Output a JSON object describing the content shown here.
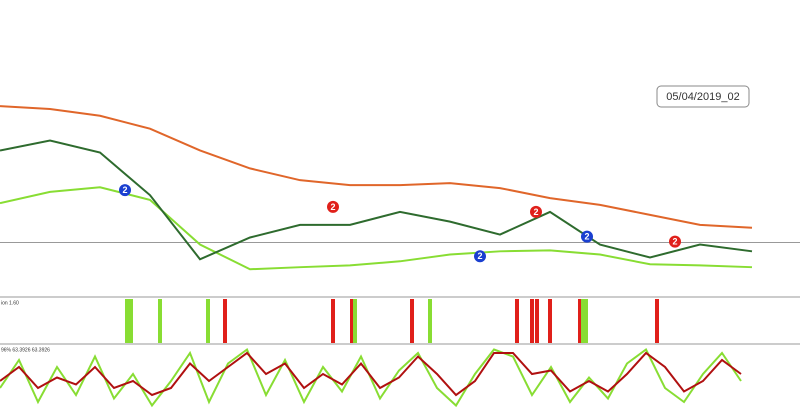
{
  "label": "05/04/2019_02",
  "chart_data": [
    {
      "type": "line",
      "x": [
        0,
        50,
        100,
        150,
        200,
        250,
        300,
        350,
        400,
        450,
        500,
        550,
        600,
        650,
        700,
        752
      ],
      "xlim": [
        0,
        752
      ],
      "ylim": [
        0,
        100
      ],
      "series": [
        {
          "color": "#e0662a",
          "values": [
            64.6,
            63.6,
            61.3,
            56.9,
            49.5,
            43.4,
            39.4,
            37.7,
            37.7,
            38.4,
            36.7,
            33.3,
            31.0,
            27.6,
            24.2,
            23.2
          ]
        },
        {
          "color": "#88dd33",
          "values": [
            31.6,
            35.4,
            37.0,
            32.7,
            17.5,
            9.1,
            9.8,
            10.4,
            11.8,
            14.1,
            15.2,
            15.5,
            14.1,
            10.8,
            10.4,
            9.8
          ]
        },
        {
          "color": "#2e6b2e",
          "values": [
            49.5,
            52.9,
            48.8,
            34.3,
            12.5,
            19.9,
            24.2,
            24.2,
            28.6,
            25.3,
            20.9,
            28.6,
            17.5,
            13.1,
            17.5,
            15.2
          ]
        }
      ],
      "price_line": 18.2,
      "signals": {
        "label": "2",
        "x": [
          125,
          480,
          587,
          333,
          536,
          675
        ],
        "y": [
          36.0,
          13.5,
          20.2,
          30.3,
          28.6,
          18.5
        ],
        "colors": [
          "#1a3fd0",
          "#1a3fd0",
          "#1a3fd0",
          "#e0201a",
          "#e0201a",
          "#e0201a"
        ]
      }
    },
    {
      "type": "bar",
      "label": "ion 1.60",
      "xlim": [
        0,
        752
      ],
      "x": [
        127,
        131,
        160,
        208,
        225,
        333,
        352,
        355,
        412,
        430,
        517,
        532,
        537,
        550,
        580,
        583,
        586,
        657
      ],
      "colors": [
        "#88dd33",
        "#88dd33",
        "#88dd33",
        "#88dd33",
        "#e0201a",
        "#e0201a",
        "#e0201a",
        "#88dd33",
        "#e0201a",
        "#88dd33",
        "#e0201a",
        "#e0201a",
        "#e0201a",
        "#e0201a",
        "#e0201a",
        "#88dd33",
        "#88dd33",
        "#e0201a"
      ]
    },
    {
      "type": "line",
      "label": "96% 63.3926 63.3926",
      "xlim": [
        0,
        752
      ],
      "ylim": [
        0,
        100
      ],
      "x": [
        0,
        19,
        38,
        57,
        76,
        95,
        114,
        133,
        152,
        171,
        190,
        209,
        228,
        247,
        266,
        285,
        304,
        323,
        342,
        361,
        380,
        399,
        418,
        437,
        456,
        475,
        494,
        513,
        532,
        551,
        570,
        589,
        608,
        627,
        646,
        665,
        684,
        703,
        722,
        741
      ],
      "series": [
        {
          "color": "#88dd33",
          "values": [
            40,
            80,
            20,
            70,
            30,
            85,
            25,
            60,
            15,
            50,
            90,
            20,
            75,
            95,
            30,
            80,
            20,
            70,
            35,
            85,
            25,
            65,
            90,
            40,
            15,
            60,
            95,
            85,
            30,
            70,
            20,
            55,
            25,
            75,
            95,
            40,
            20,
            60,
            90,
            50
          ]
        },
        {
          "color": "#b01010",
          "values": [
            50,
            70,
            40,
            55,
            45,
            70,
            40,
            50,
            30,
            40,
            75,
            50,
            70,
            90,
            60,
            75,
            40,
            60,
            45,
            75,
            40,
            55,
            85,
            60,
            30,
            50,
            90,
            90,
            60,
            65,
            35,
            50,
            35,
            60,
            90,
            70,
            35,
            50,
            80,
            60
          ]
        }
      ]
    }
  ]
}
